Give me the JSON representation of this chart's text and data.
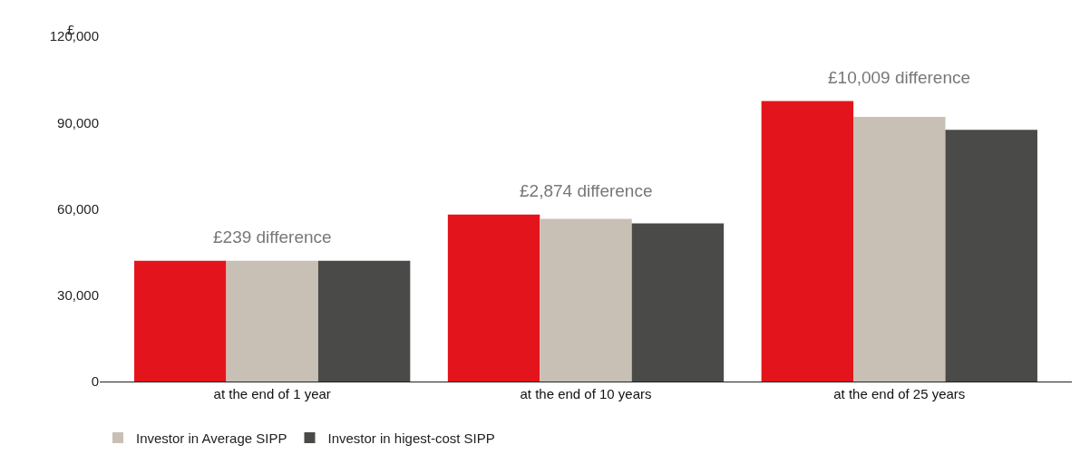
{
  "chart_data": {
    "type": "bar",
    "ylabel": "£",
    "categories": [
      "at the end of 1 year",
      "at the end of 10 years",
      "at the end of 25 years"
    ],
    "series": [
      {
        "color": "#e3141b",
        "values": [
          42000,
          58000,
          97500
        ]
      },
      {
        "name": "Investor in Average SIPP",
        "color": "#c8c0b4",
        "values": [
          42000,
          56500,
          92000
        ]
      },
      {
        "name": "Investor in higest-cost SIPP",
        "color": "#4a4a48",
        "values": [
          42000,
          55000,
          87500
        ]
      }
    ],
    "annotations": [
      "£239 difference",
      "£2,874 difference",
      "£10,009 difference"
    ],
    "ylim": [
      0,
      120000
    ],
    "yticks": [
      {
        "value": 0,
        "label": "0"
      },
      {
        "value": 30000,
        "label": "30,000"
      },
      {
        "value": 60000,
        "label": "60,000"
      },
      {
        "value": 90000,
        "label": "90,000"
      },
      {
        "value": 120000,
        "label": "120,000"
      }
    ],
    "legend": "bottom left"
  }
}
